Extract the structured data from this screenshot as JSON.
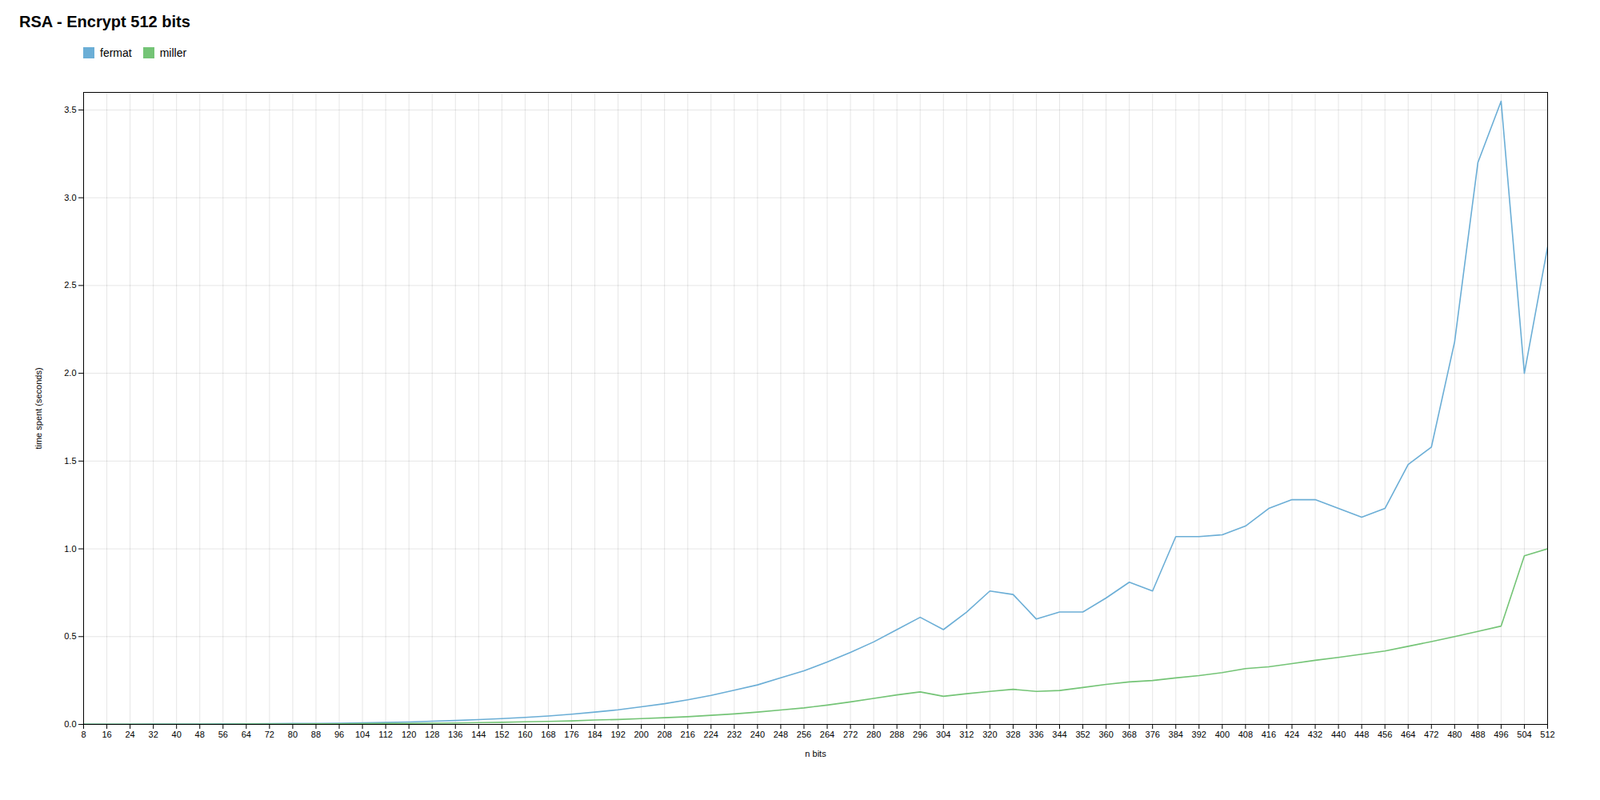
{
  "chart_data": {
    "type": "line",
    "title": "RSA - Encrypt 512 bits",
    "xlabel": "n bits",
    "ylabel": "time spent (seconds)",
    "x": [
      8,
      16,
      24,
      32,
      40,
      48,
      56,
      64,
      72,
      80,
      88,
      96,
      104,
      112,
      120,
      128,
      136,
      144,
      152,
      160,
      168,
      176,
      184,
      192,
      200,
      208,
      216,
      224,
      232,
      240,
      248,
      256,
      264,
      272,
      280,
      288,
      296,
      304,
      312,
      320,
      328,
      336,
      344,
      352,
      360,
      368,
      376,
      384,
      392,
      400,
      408,
      416,
      424,
      432,
      440,
      448,
      456,
      464,
      472,
      480,
      488,
      496,
      504,
      512
    ],
    "series": [
      {
        "name": "fermat",
        "color": "#6baed6",
        "values": [
          0.001,
          0.001,
          0.001,
          0.002,
          0.002,
          0.002,
          0.003,
          0.003,
          0.004,
          0.005,
          0.006,
          0.007,
          0.009,
          0.011,
          0.014,
          0.018,
          0.022,
          0.027,
          0.033,
          0.04,
          0.048,
          0.058,
          0.07,
          0.083,
          0.1,
          0.118,
          0.14,
          0.165,
          0.195,
          0.225,
          0.265,
          0.305,
          0.355,
          0.41,
          0.47,
          0.54,
          0.61,
          0.54,
          0.64,
          0.76,
          0.74,
          0.6,
          0.64,
          0.64,
          0.72,
          0.81,
          0.76,
          1.07,
          1.07,
          1.08,
          1.13,
          1.23,
          1.28,
          1.28,
          1.23,
          1.18,
          1.23,
          1.48,
          1.58,
          2.18,
          3.2,
          3.55,
          2.0,
          2.72
        ]
      },
      {
        "name": "miller",
        "color": "#74c476",
        "values": [
          0.001,
          0.001,
          0.001,
          0.001,
          0.001,
          0.001,
          0.001,
          0.002,
          0.002,
          0.002,
          0.003,
          0.003,
          0.004,
          0.005,
          0.006,
          0.007,
          0.008,
          0.01,
          0.012,
          0.015,
          0.017,
          0.02,
          0.025,
          0.028,
          0.033,
          0.038,
          0.044,
          0.052,
          0.06,
          0.07,
          0.082,
          0.094,
          0.11,
          0.128,
          0.148,
          0.168,
          0.185,
          0.16,
          0.175,
          0.188,
          0.2,
          0.188,
          0.193,
          0.21,
          0.228,
          0.242,
          0.25,
          0.265,
          0.278,
          0.295,
          0.318,
          0.328,
          0.346,
          0.365,
          0.382,
          0.4,
          0.418,
          0.445,
          0.472,
          0.5,
          0.53,
          0.56,
          0.96,
          1.0
        ]
      }
    ],
    "xlim": [
      8,
      512
    ],
    "xticks": [
      8,
      16,
      24,
      32,
      40,
      48,
      56,
      64,
      72,
      80,
      88,
      96,
      104,
      112,
      120,
      128,
      136,
      144,
      152,
      160,
      168,
      176,
      184,
      192,
      200,
      208,
      216,
      224,
      232,
      240,
      248,
      256,
      264,
      272,
      280,
      288,
      296,
      304,
      312,
      320,
      328,
      336,
      344,
      352,
      360,
      368,
      376,
      384,
      392,
      400,
      408,
      416,
      424,
      432,
      440,
      448,
      456,
      464,
      472,
      480,
      488,
      496,
      504,
      512
    ],
    "ylim": [
      0,
      3.6
    ],
    "yticks": [
      {
        "value": 0,
        "label": "0.0"
      },
      0.5,
      {
        "value": 1,
        "label": "1.0"
      },
      1.5,
      {
        "value": 2,
        "label": "2.0"
      },
      2.5,
      {
        "value": 3,
        "label": "3.0"
      },
      3.5
    ],
    "grid": true,
    "legend": "upper left"
  }
}
